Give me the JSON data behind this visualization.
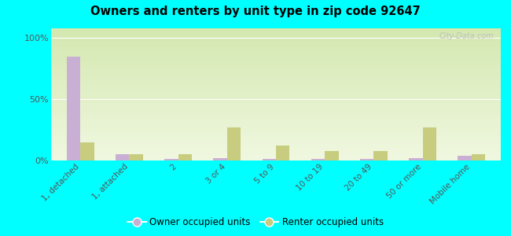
{
  "title": "Owners and renters by unit type in zip code 92647",
  "categories": [
    "1, detached",
    "1, attached",
    "2",
    "3 or 4",
    "5 to 9",
    "10 to 19",
    "20 to 49",
    "50 or more",
    "Mobile home"
  ],
  "owner_values": [
    85,
    5,
    1,
    2,
    1,
    1,
    1,
    2,
    4
  ],
  "renter_values": [
    15,
    5,
    5,
    27,
    12,
    8,
    8,
    27,
    5
  ],
  "owner_color": "#c9afd4",
  "renter_color": "#c8cc7f",
  "background_color": "#00ffff",
  "plot_bg_color_top": "#d4e8b0",
  "plot_bg_color_bottom": "#f0f8e0",
  "yticks": [
    0,
    50,
    100
  ],
  "ylim": [
    0,
    108
  ],
  "bar_width": 0.28,
  "watermark": "City-Data.com",
  "legend_owner": "Owner occupied units",
  "legend_renter": "Renter occupied units"
}
